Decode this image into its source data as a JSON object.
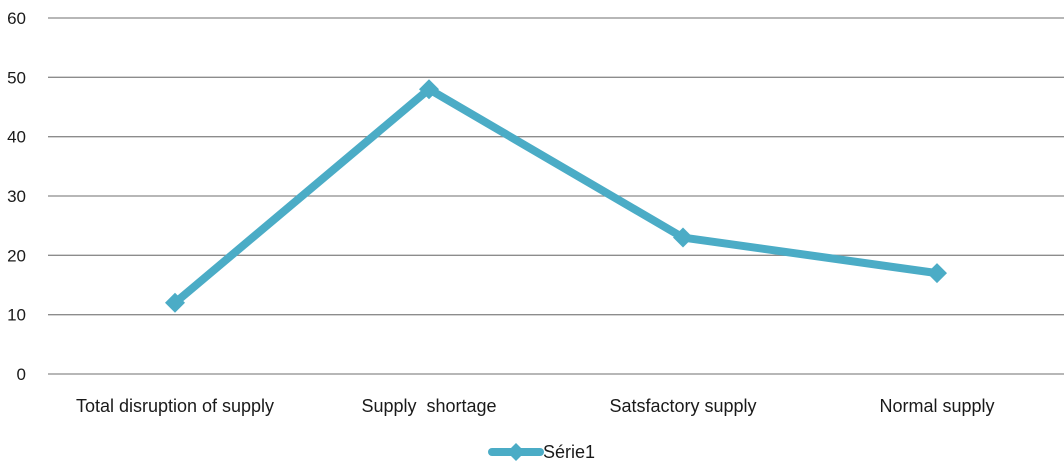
{
  "chart_data": {
    "type": "line",
    "categories": [
      "Total disruption of supply",
      "Supply  shortage",
      "Satsfactory supply",
      "Normal supply"
    ],
    "series": [
      {
        "name": "Série1",
        "values": [
          12,
          48,
          23,
          17
        ],
        "color": "#4BACC6"
      }
    ],
    "ylim": [
      0,
      60
    ],
    "yticks": [
      "0",
      "10",
      "20",
      "30",
      "40",
      "50",
      "60"
    ],
    "grid": true,
    "gridColor": "#8c8c8c",
    "legend": "bottom",
    "title": "",
    "xlabel": "",
    "ylabel": ""
  }
}
